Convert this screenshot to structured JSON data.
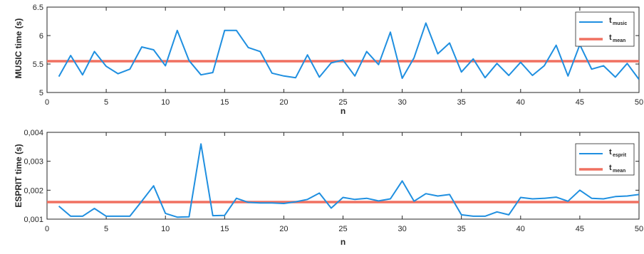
{
  "chart_data": [
    {
      "type": "line",
      "xlabel": "n",
      "ylabel": "MUSIC time (s)",
      "xlim": [
        0,
        50
      ],
      "ylim": [
        5,
        6.5
      ],
      "xticks": [
        0,
        5,
        10,
        15,
        20,
        25,
        30,
        35,
        40,
        45,
        50
      ],
      "yticks": [
        5,
        5.5,
        6,
        6.5
      ],
      "ytick_labels": [
        "5",
        "5.5",
        "6",
        "6.5"
      ],
      "grid": false,
      "legend_position": "top-right",
      "x": [
        1,
        2,
        3,
        4,
        5,
        6,
        7,
        8,
        9,
        10,
        11,
        12,
        13,
        14,
        15,
        16,
        17,
        18,
        19,
        20,
        21,
        22,
        23,
        24,
        25,
        26,
        27,
        28,
        29,
        30,
        31,
        32,
        33,
        34,
        35,
        36,
        37,
        38,
        39,
        40,
        41,
        42,
        43,
        44,
        45,
        46,
        47,
        48,
        49,
        50
      ],
      "series": [
        {
          "legend_main": "t",
          "legend_sub": "music",
          "color": "#1f8fe0",
          "values": [
            5.28,
            5.65,
            5.31,
            5.72,
            5.46,
            5.33,
            5.41,
            5.8,
            5.75,
            5.47,
            6.09,
            5.56,
            5.31,
            5.35,
            6.09,
            6.09,
            5.79,
            5.72,
            5.34,
            5.29,
            5.26,
            5.66,
            5.27,
            5.52,
            5.57,
            5.29,
            5.72,
            5.49,
            6.06,
            5.25,
            5.61,
            6.22,
            5.68,
            5.87,
            5.36,
            5.59,
            5.26,
            5.51,
            5.3,
            5.53,
            5.3,
            5.47,
            5.83,
            5.29,
            5.84,
            5.41,
            5.47,
            5.27,
            5.51,
            5.23
          ]
        },
        {
          "legend_main": "t",
          "legend_sub": "mean",
          "color": "#f07060",
          "values_constant": 5.55
        }
      ]
    },
    {
      "type": "line",
      "xlabel": "n",
      "ylabel": "ESPRIT time (s)",
      "xlim": [
        0,
        50
      ],
      "ylim": [
        0.001,
        0.004
      ],
      "xticks": [
        0,
        5,
        10,
        15,
        20,
        25,
        30,
        35,
        40,
        45,
        50
      ],
      "yticks": [
        0.001,
        0.002,
        0.003,
        0.004
      ],
      "ytick_labels": [
        "0,001",
        "0,002",
        "0,003",
        "0,004"
      ],
      "grid": false,
      "legend_position": "top-right",
      "x": [
        1,
        2,
        3,
        4,
        5,
        6,
        7,
        8,
        9,
        10,
        11,
        12,
        13,
        14,
        15,
        16,
        17,
        18,
        19,
        20,
        21,
        22,
        23,
        24,
        25,
        26,
        27,
        28,
        29,
        30,
        31,
        32,
        33,
        34,
        35,
        36,
        37,
        38,
        39,
        40,
        41,
        42,
        43,
        44,
        45,
        46,
        47,
        48,
        49,
        50
      ],
      "series": [
        {
          "legend_main": "t",
          "legend_sub": "esprit",
          "color": "#1f8fe0",
          "values": [
            0.00145,
            0.0011,
            0.0011,
            0.00137,
            0.0011,
            0.0011,
            0.0011,
            0.00162,
            0.00215,
            0.0012,
            0.00107,
            0.00108,
            0.0036,
            0.00112,
            0.00113,
            0.00172,
            0.00158,
            0.00156,
            0.00156,
            0.00154,
            0.0016,
            0.00168,
            0.0019,
            0.00138,
            0.00175,
            0.00168,
            0.00172,
            0.00163,
            0.0017,
            0.00232,
            0.00162,
            0.00188,
            0.0018,
            0.00185,
            0.00115,
            0.0011,
            0.0011,
            0.00125,
            0.00115,
            0.00175,
            0.0017,
            0.00172,
            0.00176,
            0.00162,
            0.002,
            0.00172,
            0.0017,
            0.00178,
            0.0018,
            0.00185
          ]
        },
        {
          "legend_main": "t",
          "legend_sub": "mean",
          "color": "#f07060",
          "values_constant": 0.00159
        }
      ]
    }
  ]
}
